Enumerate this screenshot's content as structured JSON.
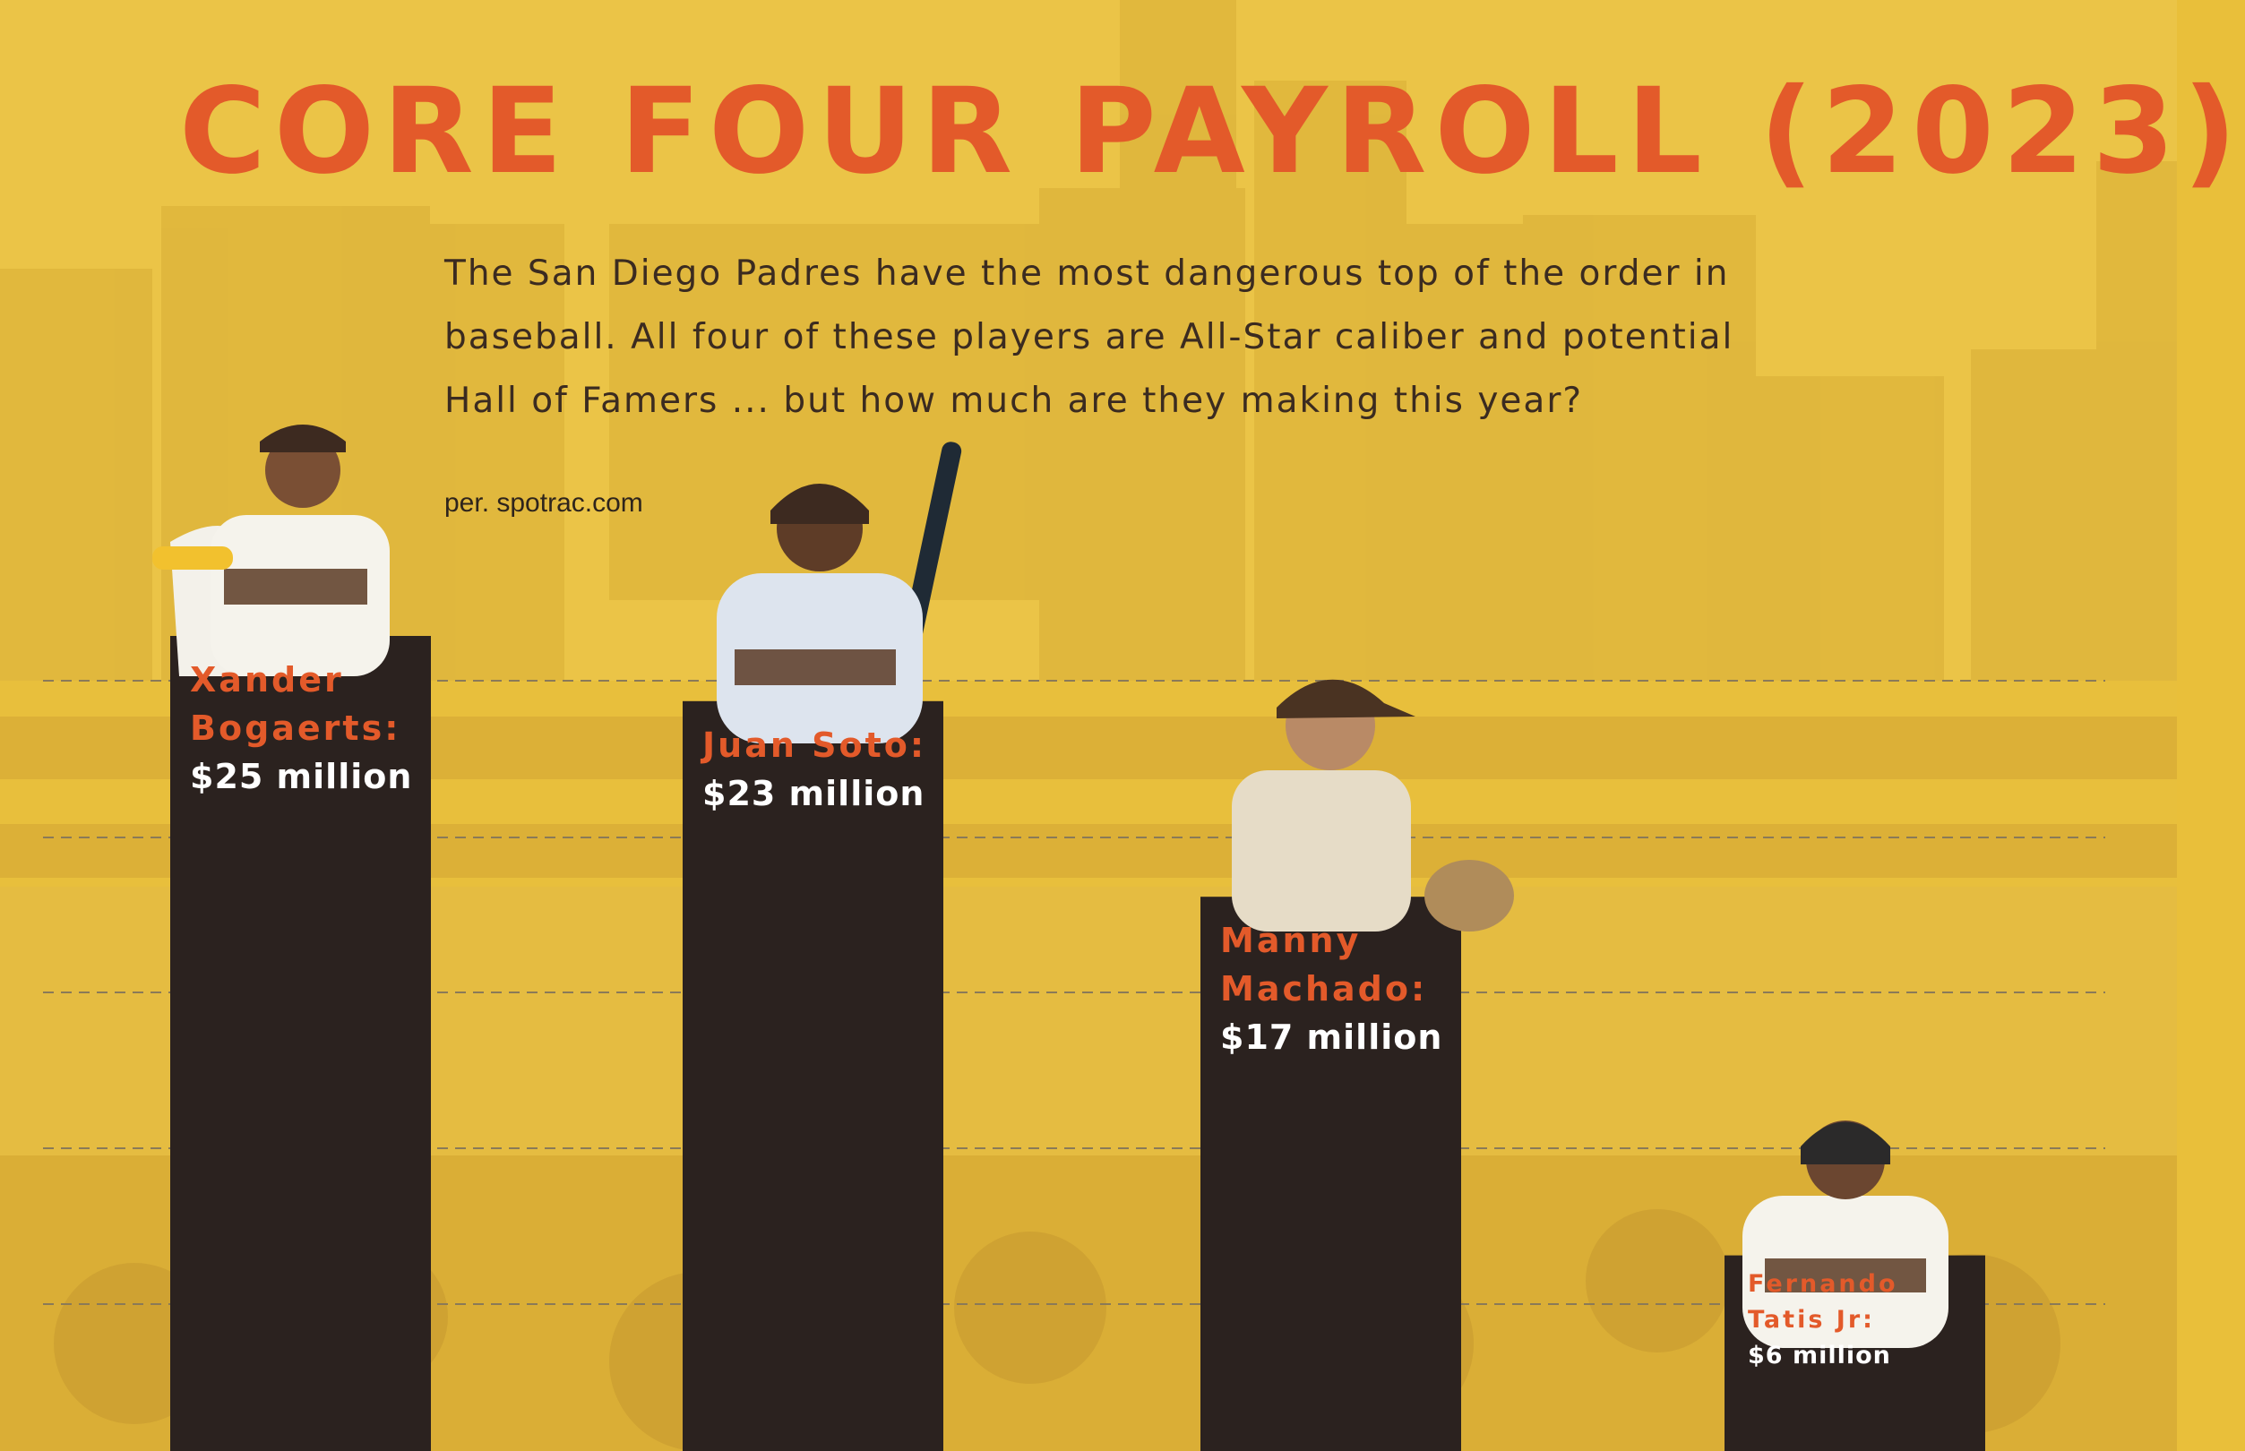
{
  "title": "CORE FOUR PAYROLL (2023)",
  "description": "The San Diego Padres have the most dangerous top of the order in baseball. All four of these players are All-Star caliber and potential Hall of Famers ... but how much are they making this year?",
  "source": "per. spotrac.com",
  "colors": {
    "background": "#e9bf3a",
    "title": "#e35a2a",
    "bar": "#2b221f",
    "label_name": "#e35a2a",
    "label_value": "#ffffff",
    "gridline": "#8a7a58"
  },
  "chart_data": {
    "type": "bar",
    "categories": [
      "Xander Bogaerts",
      "Juan Soto",
      "Manny Machado",
      "Fernando Tatis Jr"
    ],
    "values": [
      25,
      23,
      17,
      6
    ],
    "unit": "million",
    "labels": [
      {
        "name_lines": [
          "Xander",
          "Bogaerts:"
        ],
        "value": "$25 million"
      },
      {
        "name_lines": [
          "Juan Soto:"
        ],
        "value": "$23 million"
      },
      {
        "name_lines": [
          "Manny",
          "Machado:"
        ],
        "value": "$17 million"
      },
      {
        "name_lines": [
          "Fernando",
          "Tatis Jr:"
        ],
        "value": "$6 million"
      }
    ],
    "ylim": [
      0,
      30
    ],
    "grid": true
  }
}
